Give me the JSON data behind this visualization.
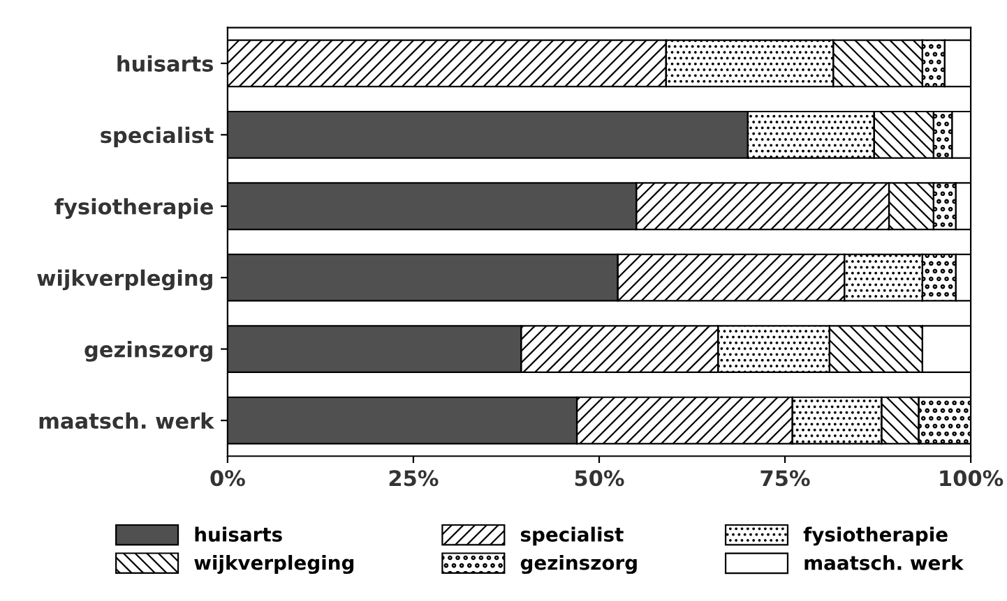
{
  "chart_data": {
    "type": "bar",
    "orientation": "horizontal",
    "stacked": true,
    "categories": [
      "huisarts",
      "specialist",
      "fysiotherapie",
      "wijkverpleging",
      "gezinszorg",
      "maatsch. werk"
    ],
    "series": [
      {
        "name": "huisarts",
        "color": "#505050",
        "values": [
          null,
          70,
          55,
          52.5,
          39.5,
          47
        ]
      },
      {
        "name": "specialist",
        "color": "#000000",
        "values": [
          59,
          null,
          34,
          30.5,
          26.5,
          29
        ]
      },
      {
        "name": "fysiotherapie",
        "color": "#000000",
        "values": [
          22.5,
          17,
          null,
          10.5,
          15,
          12
        ]
      },
      {
        "name": "wijkverpleging",
        "color": "#000000",
        "values": [
          12,
          8,
          6,
          null,
          12.5,
          5
        ]
      },
      {
        "name": "gezinszorg",
        "color": "#000000",
        "values": [
          3,
          2.5,
          3,
          4.5,
          null,
          7
        ]
      },
      {
        "name": "maatsch. werk",
        "color": "#ffffff",
        "values": [
          3.5,
          2.5,
          2,
          2,
          6.5,
          null
        ]
      }
    ],
    "xlim": [
      0,
      100
    ],
    "xticks": [
      {
        "value": 0,
        "label": "0%"
      },
      {
        "value": 25,
        "label": "25%"
      },
      {
        "value": 50,
        "label": "50%"
      },
      {
        "value": 75,
        "label": "75%"
      },
      {
        "value": 100,
        "label": "100%"
      }
    ],
    "legend": "bottom",
    "grid": false
  }
}
